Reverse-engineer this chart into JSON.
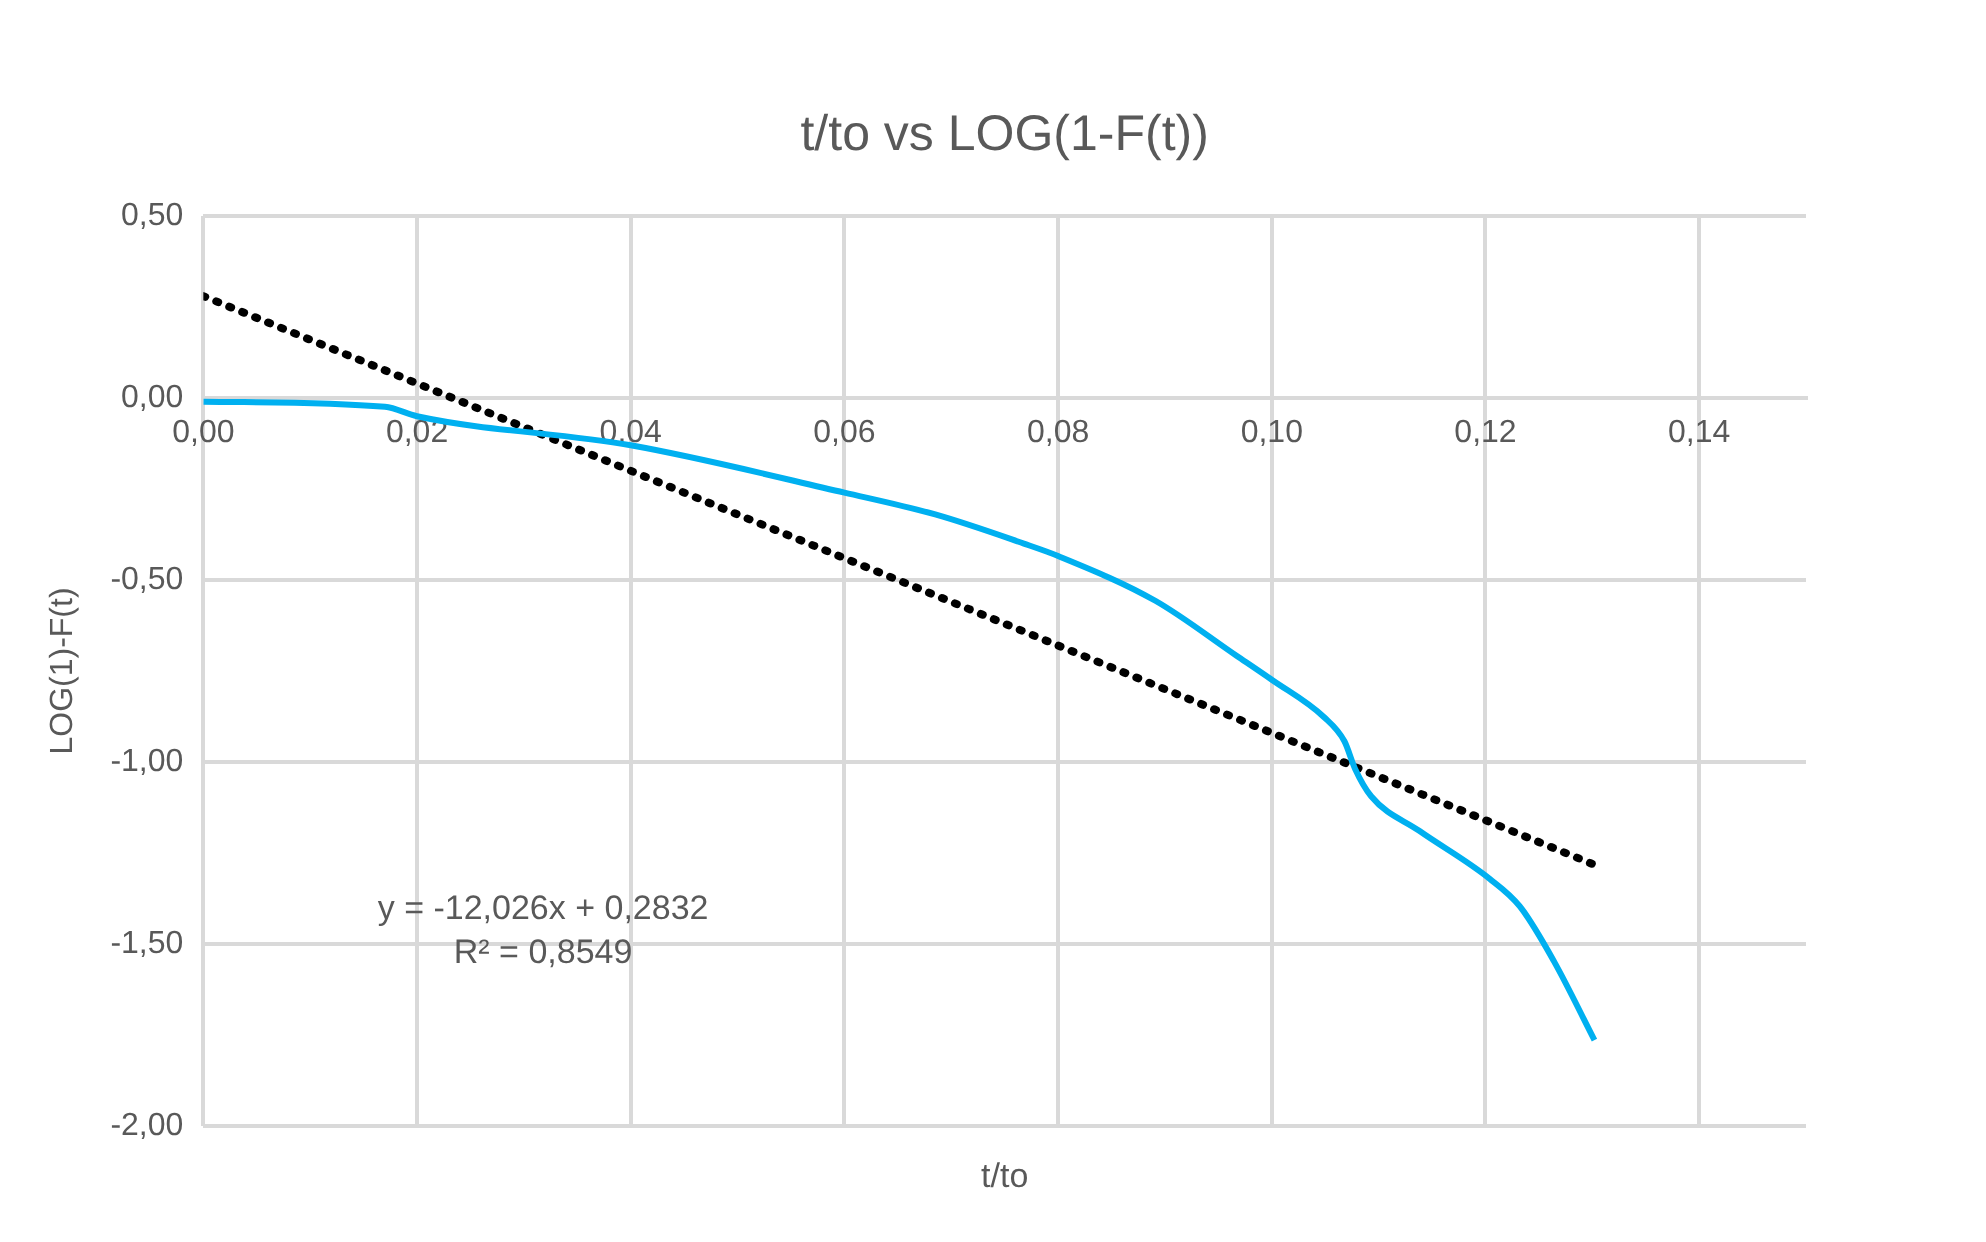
{
  "chart_data": {
    "type": "line",
    "title": "t/to vs LOG(1-F(t))",
    "xlabel": "t/to",
    "ylabel": "LOG(1)-F(t)",
    "xlim": [
      0,
      0.15
    ],
    "xticks": [
      {
        "value": 0,
        "label": "0,00"
      },
      {
        "value": 0.02,
        "label": "0,02"
      },
      {
        "value": 0.04,
        "label": "0,04"
      },
      {
        "value": 0.06,
        "label": "0,06"
      },
      {
        "value": 0.08,
        "label": "0,08"
      },
      {
        "value": 0.1,
        "label": "0,10"
      },
      {
        "value": 0.12,
        "label": "0,12"
      },
      {
        "value": 0.14,
        "label": "0,14"
      }
    ],
    "ylim": [
      -2,
      0.5
    ],
    "yticks": [
      {
        "value": -2,
        "label": "-2,00"
      },
      {
        "value": -1.5,
        "label": "-1,50"
      },
      {
        "value": -1,
        "label": "-1,00"
      },
      {
        "value": -0.5,
        "label": "-0,50"
      },
      {
        "value": 0,
        "label": "0,00"
      },
      {
        "value": 0.5,
        "label": "0,50"
      }
    ],
    "grid": true,
    "legend": false,
    "marker": "none",
    "series": [
      {
        "color": "#00b0f0",
        "line_style": "solid",
        "x": [
          0,
          0.017,
          0.02,
          0.04,
          0.06,
          0.0685,
          0.0768,
          0.08,
          0.0891,
          0.0967,
          0.1,
          0.1049,
          0.1068,
          0.1078,
          0.1093,
          0.1138,
          0.1204,
          0.1232,
          0.1264,
          0.1302
        ],
        "values": [
          -0.01,
          -0.024,
          -0.05,
          -0.13,
          -0.26,
          -0.32,
          -0.4,
          -0.434,
          -0.557,
          -0.708,
          -0.774,
          -0.877,
          -0.943,
          -1.019,
          -1.094,
          -1.189,
          -1.321,
          -1.396,
          -1.547,
          -1.764
        ]
      },
      {
        "type": "line",
        "color": "#000000",
        "line_style": "dotted",
        "x": [
          0,
          0.13
        ],
        "values": [
          0.28,
          -1.28
        ],
        "axis": "y"
      }
    ],
    "annotations": [
      "y = -12,026x + 0,2832",
      "R² = 0,8549"
    ]
  }
}
